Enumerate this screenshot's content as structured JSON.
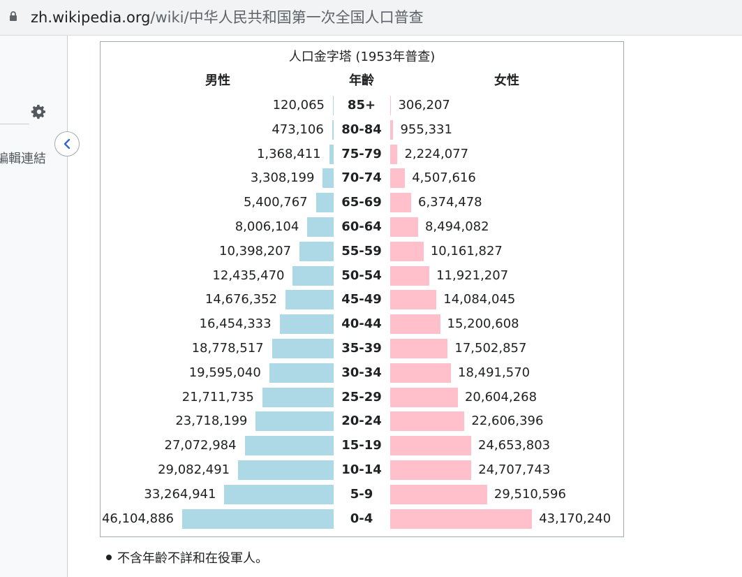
{
  "browser": {
    "url_host": "zh.wikipedia.org",
    "url_path": "/wiki/中华人民共和国第一次全国人口普查"
  },
  "sidebar": {
    "edit_links_label": "編輯連結"
  },
  "icons": {
    "lock": "lock-icon",
    "gear": "gear-icon",
    "collapse": "chevron-left-icon"
  },
  "colors": {
    "male": "#add8e6",
    "female": "#ffc0cb"
  },
  "chart_data": {
    "type": "bar",
    "title": "人口金字塔 (1953年普查)",
    "headers": {
      "male": "男性",
      "age": "年齡",
      "female": "女性"
    },
    "categories": [
      "85+",
      "80-84",
      "75-79",
      "70-74",
      "65-69",
      "60-64",
      "55-59",
      "50-54",
      "45-49",
      "40-44",
      "35-39",
      "30-34",
      "25-29",
      "20-24",
      "15-19",
      "10-14",
      "5-9",
      "0-4"
    ],
    "series": [
      {
        "name": "男性",
        "values": [
          120065,
          473106,
          1368411,
          3308199,
          5400767,
          8006104,
          10398207,
          12435470,
          14676352,
          16454333,
          18778517,
          19595040,
          21711735,
          23718199,
          27072984,
          29082491,
          33264941,
          46104886
        ],
        "labels": [
          "120,065",
          "473,106",
          "1,368,411",
          "3,308,199",
          "5,400,767",
          "8,006,104",
          "10,398,207",
          "12,435,470",
          "14,676,352",
          "16,454,333",
          "18,778,517",
          "19,595,040",
          "21,711,735",
          "23,718,199",
          "27,072,984",
          "29,082,491",
          "33,264,941",
          "46,104,886"
        ]
      },
      {
        "name": "女性",
        "values": [
          306207,
          955331,
          2224077,
          4507616,
          6374478,
          8494082,
          10161827,
          11921207,
          14084045,
          15200608,
          17502857,
          18491570,
          20604268,
          22606396,
          24653803,
          24707743,
          29510596,
          43170240
        ],
        "labels": [
          "306,207",
          "955,331",
          "2,224,077",
          "4,507,616",
          "6,374,478",
          "8,494,082",
          "10,161,827",
          "11,921,207",
          "14,084,045",
          "15,200,608",
          "17,502,857",
          "18,491,570",
          "20,604,268",
          "22,606,396",
          "24,653,803",
          "24,707,743",
          "29,510,596",
          "43,170,240"
        ]
      }
    ]
  },
  "footnote": "不含年齡不詳和在役軍人。"
}
